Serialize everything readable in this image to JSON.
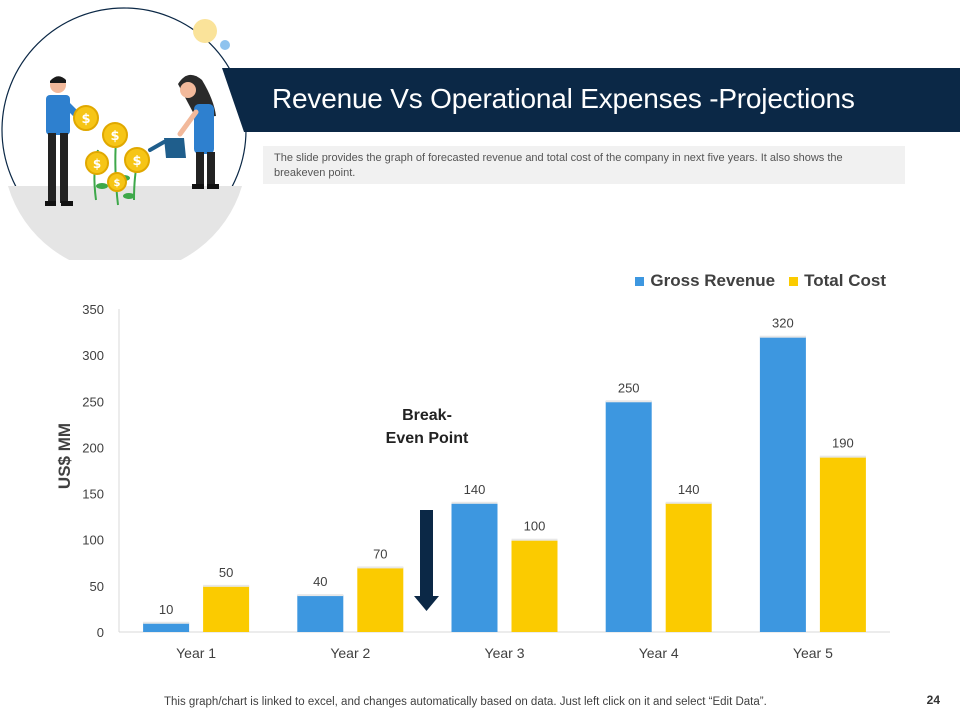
{
  "title": "Revenue Vs Operational Expenses -Projections",
  "subtitle": "The slide provides the graph of forecasted revenue and total cost of the company in next five years. It also shows the breakeven  point.",
  "footer_note": "This graph/chart is linked to excel, and changes automatically based on data. Just left click on it and select “Edit Data”.",
  "page_number": "24",
  "colors": {
    "revenue": "#3d97e0",
    "cost": "#fbcb00",
    "navy": "#0b2846"
  },
  "chart_data": {
    "type": "bar",
    "categories": [
      "Year 1",
      "Year 2",
      "Year 3",
      "Year 4",
      "Year 5"
    ],
    "series": [
      {
        "name": "Gross Revenue",
        "values": [
          10,
          40,
          140,
          250,
          320
        ]
      },
      {
        "name": "Total Cost",
        "values": [
          50,
          70,
          100,
          140,
          190
        ]
      }
    ],
    "ylabel": "US$ MM",
    "ylim": [
      0,
      350
    ],
    "yticks": [
      "0",
      "50",
      "100",
      "150",
      "200",
      "250",
      "300",
      "350"
    ],
    "annotation": {
      "line1": "Break-",
      "line2": "Even Point"
    },
    "legend_position": "top-right"
  }
}
